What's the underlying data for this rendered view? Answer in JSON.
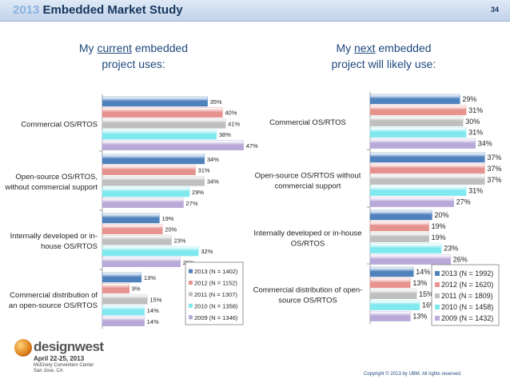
{
  "header": {
    "year": "2013",
    "title": "Embedded Market Study",
    "page": "34"
  },
  "logo": {
    "name": "designwest",
    "dates": "April 22-25, 2013",
    "venue_line1": "McEnery Convention Center",
    "venue_line2": "San Jose, CA"
  },
  "copyright": "Copyright © 2013 by UBM. All rights reserved.",
  "colors": {
    "2013": "#4f81bd",
    "2012": "#e6928e",
    "2011": "#bfbfbf",
    "2010": "#7fe9ef",
    "2009": "#b8a9d9"
  },
  "chart_data": [
    {
      "type": "bar",
      "orientation": "horizontal",
      "title_pre": "My ",
      "title_underlined": "current",
      "title_post": " embedded",
      "title_line2": "project uses:",
      "categories": [
        [
          "Commercial OS/RTOS"
        ],
        [
          "Open-source OS/RTOS,",
          "without commercial support"
        ],
        [
          "Internally developed or in-",
          "house OS/RTOS"
        ],
        [
          "Commercial distribution of",
          "an open-source OS/RTOS"
        ]
      ],
      "series": [
        {
          "name": "2013 (N = 1402)",
          "values": [
            35,
            34,
            19,
            13
          ]
        },
        {
          "name": "2012 (N = 1152)",
          "values": [
            40,
            31,
            20,
            9
          ]
        },
        {
          "name": "2011 (N = 1307)",
          "values": [
            41,
            34,
            23,
            15
          ]
        },
        {
          "name": "2010 (N = 1358)",
          "values": [
            38,
            29,
            32,
            14
          ]
        },
        {
          "name": "2009 (N = 1346)",
          "values": [
            47,
            27,
            26,
            14
          ]
        }
      ],
      "unit": "%",
      "xlim": [
        0,
        50
      ]
    },
    {
      "type": "bar",
      "orientation": "horizontal",
      "title_pre": "My ",
      "title_underlined": "next",
      "title_post": " embedded",
      "title_line2": "project will likely use:",
      "categories": [
        [
          "Commercial OS/RTOS"
        ],
        [
          "Open-source OS/RTOS without",
          "commercial support"
        ],
        [
          "Internally developed or in-house",
          "OS/RTOS"
        ],
        [
          "Commercial distribution of open-",
          "source OS/RTOS"
        ]
      ],
      "series": [
        {
          "name": "2013 (N = 1992)",
          "values": [
            29,
            37,
            20,
            14
          ]
        },
        {
          "name": "2012 (N = 1620)",
          "values": [
            31,
            37,
            19,
            13
          ]
        },
        {
          "name": "2011 (N = 1809)",
          "values": [
            30,
            37,
            19,
            15
          ]
        },
        {
          "name": "2010 (N = 1458)",
          "values": [
            31,
            31,
            23,
            16
          ]
        },
        {
          "name": "2009 (N = 1432)",
          "values": [
            34,
            27,
            26,
            13
          ]
        }
      ],
      "unit": "%",
      "xlim": [
        0,
        40
      ]
    }
  ]
}
